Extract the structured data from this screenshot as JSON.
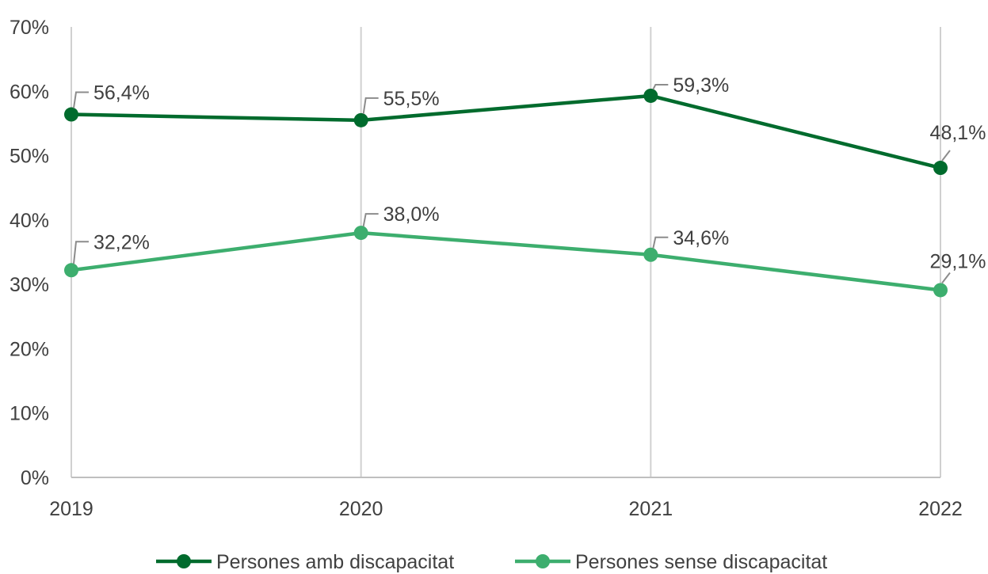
{
  "chart_data": {
    "type": "line",
    "title": "",
    "xlabel": "",
    "ylabel": "",
    "categories": [
      "2019",
      "2020",
      "2021",
      "2022"
    ],
    "ylim": [
      0,
      70
    ],
    "yticks": [
      "0%",
      "10%",
      "20%",
      "30%",
      "40%",
      "50%",
      "60%",
      "70%"
    ],
    "grid": "vertical",
    "legend_position": "bottom",
    "series": [
      {
        "name": "Persones amb discapacitat",
        "values": [
          56.4,
          55.5,
          59.3,
          48.1
        ],
        "labels": [
          "56,4%",
          "55,5%",
          "59,3%",
          "48,1%"
        ],
        "color": "#006B2D"
      },
      {
        "name": "Persones sense discapacitat",
        "values": [
          32.2,
          38.0,
          34.6,
          29.1
        ],
        "labels": [
          "32,2%",
          "38,0%",
          "34,6%",
          "29,1%"
        ],
        "color": "#3DAE6E"
      }
    ]
  }
}
